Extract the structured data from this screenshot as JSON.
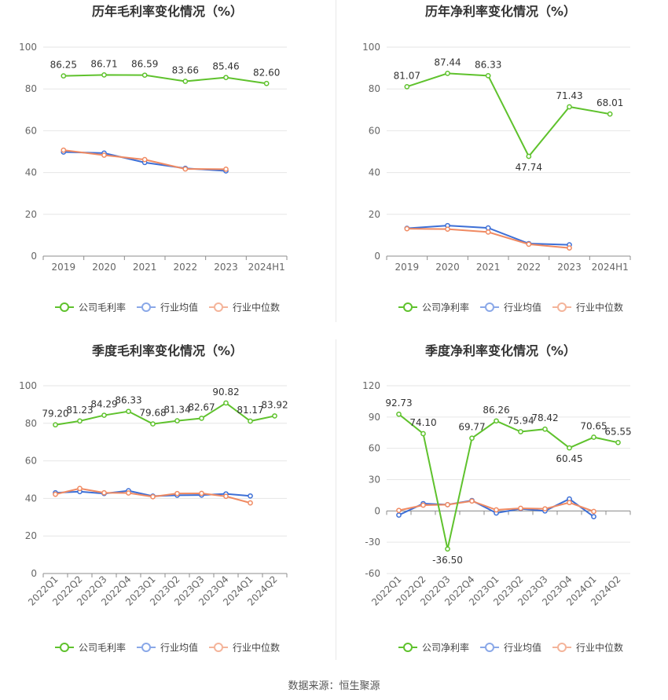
{
  "source_note": "数据来源：恒生聚源",
  "colors": {
    "company": "#5fc22d",
    "industry_avg": "#3d6fd6",
    "industry_median": "#f08a62",
    "legend_avg": "#8aa8e8",
    "legend_median": "#f4b49a",
    "axis": "#999999",
    "grid": "#e6e6e6",
    "text": "#666666",
    "title": "#333333"
  },
  "chart_data": [
    {
      "type": "line",
      "title": "历年毛利率变化情况（%）",
      "categories": [
        "2019",
        "2020",
        "2021",
        "2022",
        "2023",
        "2024H1"
      ],
      "ylim": [
        0,
        100
      ],
      "yticks": [
        0,
        20,
        40,
        60,
        80,
        100
      ],
      "grid": true,
      "legend_position": "bottom-center",
      "rotate_labels": false,
      "series": [
        {
          "name": "公司毛利率",
          "role": "company",
          "values": [
            86.25,
            86.71,
            86.59,
            83.66,
            85.46,
            82.6
          ],
          "labels": [
            "86.25",
            "86.71",
            "86.59",
            "83.66",
            "85.46",
            "82.60"
          ]
        },
        {
          "name": "行业均值",
          "role": "industry_avg",
          "values": [
            49.8,
            49.3,
            44.8,
            42.0,
            40.8,
            null
          ]
        },
        {
          "name": "行业中位数",
          "role": "industry_median",
          "values": [
            50.7,
            48.3,
            46.2,
            41.7,
            41.6,
            null
          ]
        }
      ]
    },
    {
      "type": "line",
      "title": "历年净利率变化情况（%）",
      "categories": [
        "2019",
        "2020",
        "2021",
        "2022",
        "2023",
        "2024H1"
      ],
      "ylim": [
        0,
        100
      ],
      "yticks": [
        0,
        20,
        40,
        60,
        80,
        100
      ],
      "grid": true,
      "legend_position": "bottom-center",
      "rotate_labels": false,
      "series": [
        {
          "name": "公司净利率",
          "role": "company",
          "values": [
            81.07,
            87.44,
            86.33,
            47.74,
            71.43,
            68.01
          ],
          "labels": [
            "81.07",
            "87.44",
            "86.33",
            "47.74",
            "71.43",
            "68.01"
          ]
        },
        {
          "name": "行业均值",
          "role": "industry_avg",
          "values": [
            13.3,
            14.6,
            13.5,
            6.0,
            5.4,
            null
          ]
        },
        {
          "name": "行业中位数",
          "role": "industry_median",
          "values": [
            13.1,
            12.9,
            11.5,
            5.7,
            3.9,
            null
          ]
        }
      ]
    },
    {
      "type": "line",
      "title": "季度毛利率变化情况（%）",
      "categories": [
        "2022Q1",
        "2022Q2",
        "2022Q3",
        "2022Q4",
        "2023Q1",
        "2023Q2",
        "2023Q3",
        "2023Q4",
        "2024Q1",
        "2024Q2"
      ],
      "ylim": [
        0,
        100
      ],
      "yticks": [
        0,
        20,
        40,
        60,
        80,
        100
      ],
      "grid": true,
      "legend_position": "bottom-center",
      "rotate_labels": true,
      "series": [
        {
          "name": "公司毛利率",
          "role": "company",
          "values": [
            79.2,
            81.23,
            84.29,
            86.33,
            79.68,
            81.34,
            82.67,
            90.82,
            81.17,
            83.92
          ],
          "labels": [
            "79.20",
            "81.23",
            "84.29",
            "86.33",
            "79.68",
            "81.34",
            "82.67",
            "90.82",
            "81.17",
            "83.92"
          ]
        },
        {
          "name": "行业均值",
          "role": "industry_avg",
          "values": [
            43.0,
            43.6,
            42.6,
            44.1,
            41.2,
            41.7,
            41.8,
            42.4,
            41.3,
            null
          ]
        },
        {
          "name": "行业中位数",
          "role": "industry_median",
          "values": [
            42.2,
            45.3,
            43.0,
            42.9,
            40.9,
            42.6,
            42.7,
            41.1,
            37.6,
            null
          ]
        }
      ]
    },
    {
      "type": "line",
      "title": "季度净利率变化情况（%）",
      "categories": [
        "2022Q1",
        "2022Q2",
        "2022Q3",
        "2022Q4",
        "2023Q1",
        "2023Q2",
        "2023Q3",
        "2023Q4",
        "2024Q1",
        "2024Q2"
      ],
      "ylim": [
        -60,
        120
      ],
      "yticks": [
        -60,
        -30,
        0,
        30,
        60,
        90,
        120
      ],
      "grid": true,
      "legend_position": "bottom-center",
      "rotate_labels": true,
      "series": [
        {
          "name": "公司净利率",
          "role": "company",
          "values": [
            92.73,
            74.1,
            -36.5,
            69.77,
            86.26,
            75.94,
            78.42,
            60.45,
            70.65,
            65.55
          ],
          "labels": [
            "92.73",
            "74.10",
            "-36.50",
            "69.77",
            "86.26",
            "75.94",
            "78.42",
            "60.45",
            "70.65",
            "65.55"
          ]
        },
        {
          "name": "行业均值",
          "role": "industry_avg",
          "values": [
            -4.0,
            7.0,
            6.0,
            10.0,
            -2.0,
            2.0,
            0.0,
            11.5,
            -5.5,
            null
          ]
        },
        {
          "name": "行业中位数",
          "role": "industry_median",
          "values": [
            0.5,
            5.5,
            6.0,
            9.5,
            1.0,
            2.5,
            2.0,
            8.0,
            -0.5,
            null
          ]
        }
      ]
    }
  ]
}
